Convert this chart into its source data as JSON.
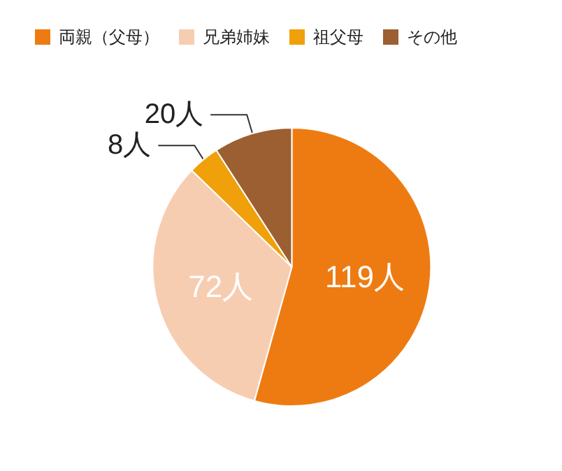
{
  "chart_data": {
    "type": "pie",
    "categories": [
      "両親（父母）",
      "兄弟姉妹",
      "祖父母",
      "その他"
    ],
    "values": [
      119,
      72,
      8,
      20
    ],
    "colors": [
      "#ee7b11",
      "#f7cdb2",
      "#f0a00a",
      "#9c5f31"
    ],
    "value_labels": [
      "119人",
      "72人",
      "8人",
      "20人"
    ],
    "legend": "top"
  }
}
